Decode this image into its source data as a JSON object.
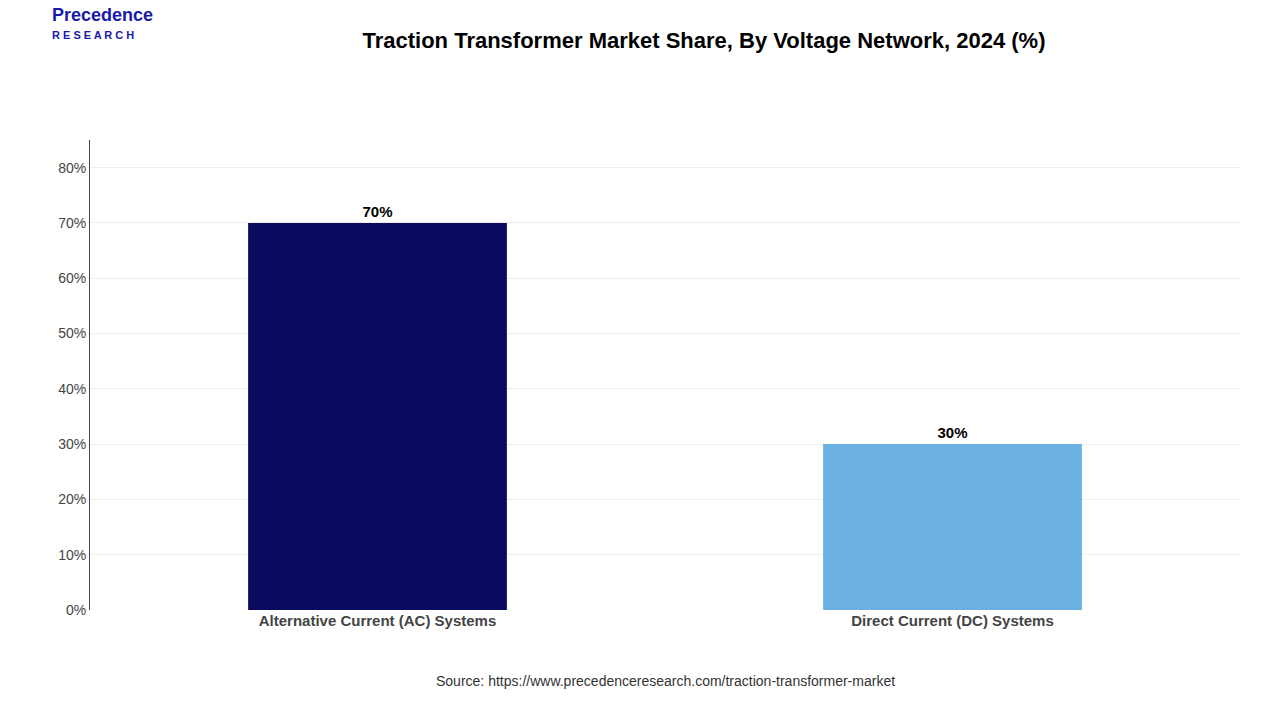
{
  "chart_data": {
    "type": "bar",
    "title": "Traction Transformer Market Share, By Voltage Network, 2024 (%)",
    "categories": [
      "Alternative Current (AC) Systems",
      "Direct Current (DC) Systems"
    ],
    "values": [
      70,
      30
    ],
    "value_labels": [
      "70%",
      "30%"
    ],
    "data_labels": true,
    "colors": [
      "#0a0a5e",
      "#6ab0e0"
    ],
    "ylim": [
      0,
      85
    ],
    "yticks": [
      {
        "value": 0,
        "label": "0%"
      },
      {
        "value": 10,
        "label": "10%"
      },
      {
        "value": 20,
        "label": "20%"
      },
      {
        "value": 30,
        "label": "30%"
      },
      {
        "value": 40,
        "label": "40%"
      },
      {
        "value": 50,
        "label": "50%"
      },
      {
        "value": 60,
        "label": "60%"
      },
      {
        "value": 70,
        "label": "70%"
      },
      {
        "value": 80,
        "label": "80%"
      }
    ],
    "grid": true,
    "annotations": [
      "Precedence",
      "R E S E A R C H",
      "Source: https://www.precedenceresearch.com/traction-transformer-market"
    ]
  }
}
